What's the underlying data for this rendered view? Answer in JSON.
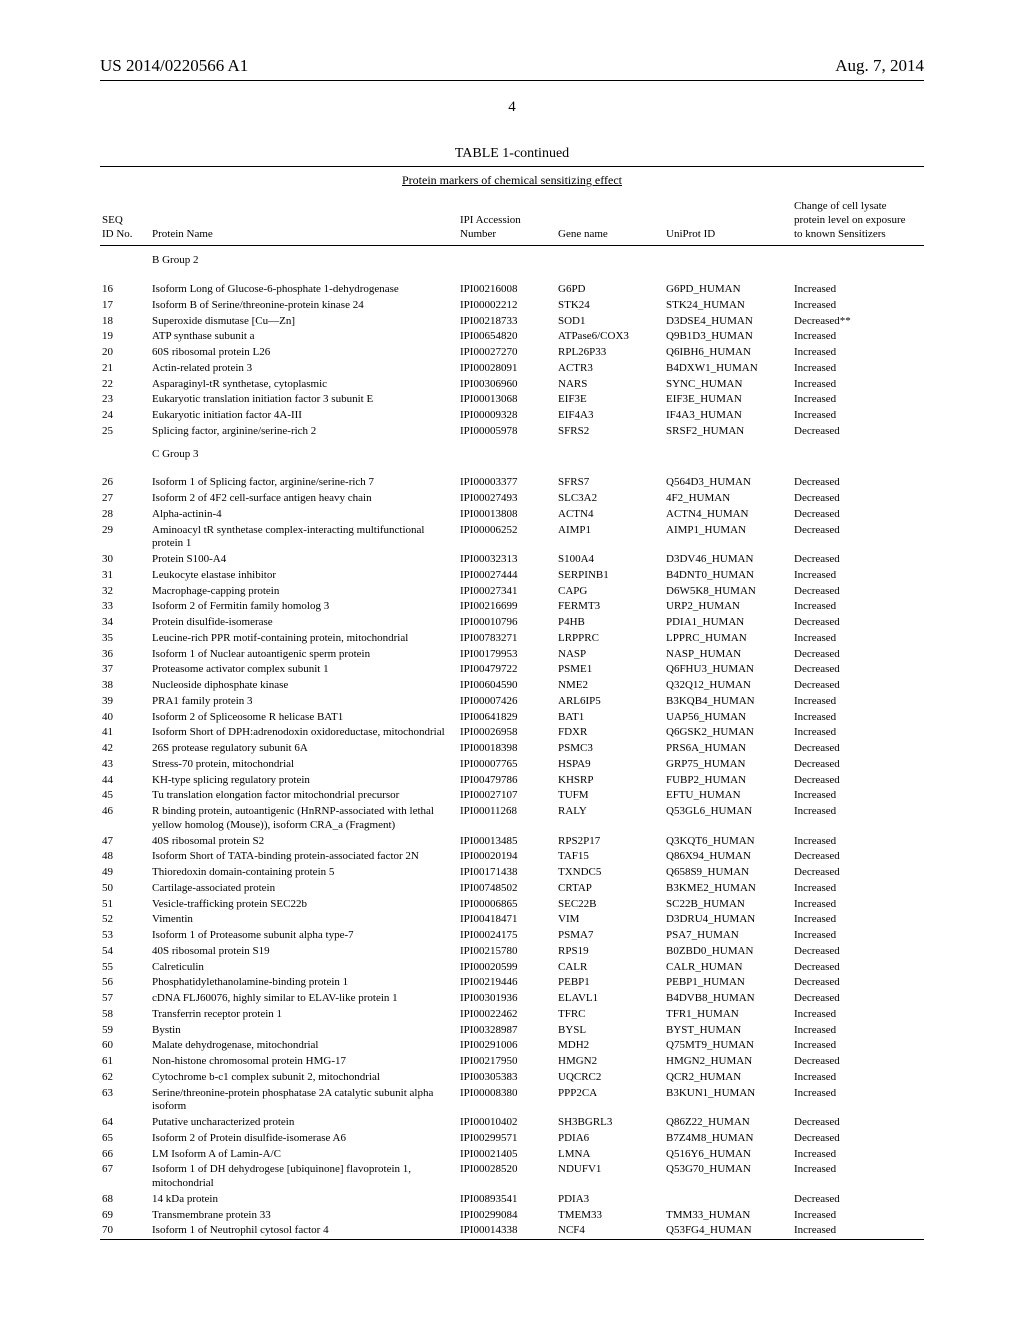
{
  "header": {
    "docnum": "US 2014/0220566 A1",
    "date": "Aug. 7, 2014",
    "pagenum": "4"
  },
  "table": {
    "caption": "TABLE 1-continued",
    "subcaption": "Protein markers of chemical sensitizing effect",
    "columns": {
      "seq": "SEQ\nID No.",
      "name": "Protein Name",
      "ipi": "IPI Accession\nNumber",
      "gene": "Gene name",
      "uni": "UniProt ID",
      "change": "Change of cell lysate\nprotein level on exposure\nto known Sensitizers"
    },
    "groups": [
      {
        "label": "B Group 2",
        "rows": [
          {
            "seq": "16",
            "name": "Isoform Long of Glucose-6-phosphate 1-dehydrogenase",
            "ipi": "IPI00216008",
            "gene": "G6PD",
            "uni": "G6PD_HUMAN",
            "change": "Increased"
          },
          {
            "seq": "17",
            "name": "Isoform B of Serine/threonine-protein kinase 24",
            "ipi": "IPI00002212",
            "gene": "STK24",
            "uni": "STK24_HUMAN",
            "change": "Increased"
          },
          {
            "seq": "18",
            "name": "Superoxide dismutase [Cu—Zn]",
            "ipi": "IPI00218733",
            "gene": "SOD1",
            "uni": "D3DSE4_HUMAN",
            "change": "Decreased**"
          },
          {
            "seq": "19",
            "name": "ATP synthase subunit a",
            "ipi": "IPI00654820",
            "gene": "ATPase6/COX3",
            "uni": "Q9B1D3_HUMAN",
            "change": "Increased"
          },
          {
            "seq": "20",
            "name": "60S ribosomal protein L26",
            "ipi": "IPI00027270",
            "gene": "RPL26P33",
            "uni": "Q6IBH6_HUMAN",
            "change": "Increased"
          },
          {
            "seq": "21",
            "name": "Actin-related protein 3",
            "ipi": "IPI00028091",
            "gene": "ACTR3",
            "uni": "B4DXW1_HUMAN",
            "change": "Increased"
          },
          {
            "seq": "22",
            "name": "Asparaginyl-tR synthetase, cytoplasmic",
            "ipi": "IPI00306960",
            "gene": "NARS",
            "uni": "SYNC_HUMAN",
            "change": "Increased"
          },
          {
            "seq": "23",
            "name": "Eukaryotic translation initiation factor 3 subunit E",
            "ipi": "IPI00013068",
            "gene": "EIF3E",
            "uni": "EIF3E_HUMAN",
            "change": "Increased"
          },
          {
            "seq": "24",
            "name": "Eukaryotic initiation factor 4A-III",
            "ipi": "IPI00009328",
            "gene": "EIF4A3",
            "uni": "IF4A3_HUMAN",
            "change": "Increased"
          },
          {
            "seq": "25",
            "name": "Splicing factor, arginine/serine-rich 2",
            "ipi": "IPI00005978",
            "gene": "SFRS2",
            "uni": "SRSF2_HUMAN",
            "change": "Decreased"
          }
        ]
      },
      {
        "label": "C Group 3",
        "rows": [
          {
            "seq": "26",
            "name": "Isoform 1 of Splicing factor, arginine/serine-rich 7",
            "ipi": "IPI00003377",
            "gene": "SFRS7",
            "uni": "Q564D3_HUMAN",
            "change": "Decreased"
          },
          {
            "seq": "27",
            "name": "Isoform 2 of 4F2 cell-surface antigen heavy chain",
            "ipi": "IPI00027493",
            "gene": "SLC3A2",
            "uni": "4F2_HUMAN",
            "change": "Decreased"
          },
          {
            "seq": "28",
            "name": "Alpha-actinin-4",
            "ipi": "IPI00013808",
            "gene": "ACTN4",
            "uni": "ACTN4_HUMAN",
            "change": "Decreased"
          },
          {
            "seq": "29",
            "name": "Aminoacyl tR synthetase complex-interacting multifunctional protein 1",
            "ipi": "IPI00006252",
            "gene": "AIMP1",
            "uni": "AIMP1_HUMAN",
            "change": "Decreased"
          },
          {
            "seq": "30",
            "name": "Protein S100-A4",
            "ipi": "IPI00032313",
            "gene": "S100A4",
            "uni": "D3DV46_HUMAN",
            "change": "Decreased"
          },
          {
            "seq": "31",
            "name": "Leukocyte elastase inhibitor",
            "ipi": "IPI00027444",
            "gene": "SERPINB1",
            "uni": "B4DNT0_HUMAN",
            "change": "Increased"
          },
          {
            "seq": "32",
            "name": "Macrophage-capping protein",
            "ipi": "IPI00027341",
            "gene": "CAPG",
            "uni": "D6W5K8_HUMAN",
            "change": "Decreased"
          },
          {
            "seq": "33",
            "name": "Isoform 2 of Fermitin family homolog 3",
            "ipi": "IPI00216699",
            "gene": "FERMT3",
            "uni": "URP2_HUMAN",
            "change": "Increased"
          },
          {
            "seq": "34",
            "name": "Protein disulfide-isomerase",
            "ipi": "IPI00010796",
            "gene": "P4HB",
            "uni": "PDIA1_HUMAN",
            "change": "Decreased"
          },
          {
            "seq": "35",
            "name": "Leucine-rich PPR motif-containing protein, mitochondrial",
            "ipi": "IPI00783271",
            "gene": "LRPPRC",
            "uni": "LPPRC_HUMAN",
            "change": "Increased"
          },
          {
            "seq": "36",
            "name": "Isoform 1 of Nuclear autoantigenic sperm protein",
            "ipi": "IPI00179953",
            "gene": "NASP",
            "uni": "NASP_HUMAN",
            "change": "Decreased"
          },
          {
            "seq": "37",
            "name": "Proteasome activator complex subunit 1",
            "ipi": "IPI00479722",
            "gene": "PSME1",
            "uni": "Q6FHU3_HUMAN",
            "change": "Decreased"
          },
          {
            "seq": "38",
            "name": "Nucleoside diphosphate kinase",
            "ipi": "IPI00604590",
            "gene": "NME2",
            "uni": "Q32Q12_HUMAN",
            "change": "Decreased"
          },
          {
            "seq": "39",
            "name": "PRA1 family protein 3",
            "ipi": "IPI00007426",
            "gene": "ARL6IP5",
            "uni": "B3KQB4_HUMAN",
            "change": "Increased"
          },
          {
            "seq": "40",
            "name": "Isoform 2 of Spliceosome R helicase BAT1",
            "ipi": "IPI00641829",
            "gene": "BAT1",
            "uni": "UAP56_HUMAN",
            "change": "Increased"
          },
          {
            "seq": "41",
            "name": "Isoform Short of DPH:adrenodoxin oxidoreductase, mitochondrial",
            "ipi": "IPI00026958",
            "gene": "FDXR",
            "uni": "Q6GSK2_HUMAN",
            "change": "Increased"
          },
          {
            "seq": "42",
            "name": "26S protease regulatory subunit 6A",
            "ipi": "IPI00018398",
            "gene": "PSMC3",
            "uni": "PRS6A_HUMAN",
            "change": "Decreased"
          },
          {
            "seq": "43",
            "name": "Stress-70 protein, mitochondrial",
            "ipi": "IPI00007765",
            "gene": "HSPA9",
            "uni": "GRP75_HUMAN",
            "change": "Decreased"
          },
          {
            "seq": "44",
            "name": "KH-type splicing regulatory protein",
            "ipi": "IPI00479786",
            "gene": "KHSRP",
            "uni": "FUBP2_HUMAN",
            "change": "Decreased"
          },
          {
            "seq": "45",
            "name": "Tu translation elongation factor mitochondrial precursor",
            "ipi": "IPI00027107",
            "gene": "TUFM",
            "uni": "EFTU_HUMAN",
            "change": "Increased"
          },
          {
            "seq": "46",
            "name": "R binding protein, autoantigenic (HnRNP-associated with lethal yellow homolog (Mouse)), isoform CRA_a (Fragment)",
            "ipi": "IPI00011268",
            "gene": "RALY",
            "uni": "Q53GL6_HUMAN",
            "change": "Increased"
          },
          {
            "seq": "47",
            "name": "40S ribosomal protein S2",
            "ipi": "IPI00013485",
            "gene": "RPS2P17",
            "uni": "Q3KQT6_HUMAN",
            "change": "Increased"
          },
          {
            "seq": "48",
            "name": "Isoform Short of TATA-binding protein-associated factor 2N",
            "ipi": "IPI00020194",
            "gene": "TAF15",
            "uni": "Q86X94_HUMAN",
            "change": "Decreased"
          },
          {
            "seq": "49",
            "name": "Thioredoxin domain-containing protein 5",
            "ipi": "IPI00171438",
            "gene": "TXNDC5",
            "uni": "Q658S9_HUMAN",
            "change": "Decreased"
          },
          {
            "seq": "50",
            "name": "Cartilage-associated protein",
            "ipi": "IPI00748502",
            "gene": "CRTAP",
            "uni": "B3KME2_HUMAN",
            "change": "Increased"
          },
          {
            "seq": "51",
            "name": "Vesicle-trafficking protein SEC22b",
            "ipi": "IPI00006865",
            "gene": "SEC22B",
            "uni": "SC22B_HUMAN",
            "change": "Increased"
          },
          {
            "seq": "52",
            "name": "Vimentin",
            "ipi": "IPI00418471",
            "gene": "VIM",
            "uni": "D3DRU4_HUMAN",
            "change": "Increased"
          },
          {
            "seq": "53",
            "name": "Isoform 1 of Proteasome subunit alpha type-7",
            "ipi": "IPI00024175",
            "gene": "PSMA7",
            "uni": "PSA7_HUMAN",
            "change": "Increased"
          },
          {
            "seq": "54",
            "name": "40S ribosomal protein S19",
            "ipi": "IPI00215780",
            "gene": "RPS19",
            "uni": "B0ZBD0_HUMAN",
            "change": "Decreased"
          },
          {
            "seq": "55",
            "name": "Calreticulin",
            "ipi": "IPI00020599",
            "gene": "CALR",
            "uni": "CALR_HUMAN",
            "change": "Decreased"
          },
          {
            "seq": "56",
            "name": "Phosphatidylethanolamine-binding protein 1",
            "ipi": "IPI00219446",
            "gene": "PEBP1",
            "uni": "PEBP1_HUMAN",
            "change": "Decreased"
          },
          {
            "seq": "57",
            "name": "cDNA FLJ60076, highly similar to ELAV-like protein 1",
            "ipi": "IPI00301936",
            "gene": "ELAVL1",
            "uni": "B4DVB8_HUMAN",
            "change": "Decreased"
          },
          {
            "seq": "58",
            "name": "Transferrin receptor protein 1",
            "ipi": "IPI00022462",
            "gene": "TFRC",
            "uni": "TFR1_HUMAN",
            "change": "Increased"
          },
          {
            "seq": "59",
            "name": "Bystin",
            "ipi": "IPI00328987",
            "gene": "BYSL",
            "uni": "BYST_HUMAN",
            "change": "Increased"
          },
          {
            "seq": "60",
            "name": "Malate dehydrogenase, mitochondrial",
            "ipi": "IPI00291006",
            "gene": "MDH2",
            "uni": "Q75MT9_HUMAN",
            "change": "Increased"
          },
          {
            "seq": "61",
            "name": "Non-histone chromosomal protein HMG-17",
            "ipi": "IPI00217950",
            "gene": "HMGN2",
            "uni": "HMGN2_HUMAN",
            "change": "Decreased"
          },
          {
            "seq": "62",
            "name": "Cytochrome b-c1 complex subunit 2, mitochondrial",
            "ipi": "IPI00305383",
            "gene": "UQCRC2",
            "uni": "QCR2_HUMAN",
            "change": "Increased"
          },
          {
            "seq": "63",
            "name": "Serine/threonine-protein phosphatase 2A catalytic subunit alpha isoform",
            "ipi": "IPI00008380",
            "gene": "PPP2CA",
            "uni": "B3KUN1_HUMAN",
            "change": "Increased"
          },
          {
            "seq": "64",
            "name": "Putative uncharacterized protein",
            "ipi": "IPI00010402",
            "gene": "SH3BGRL3",
            "uni": "Q86Z22_HUMAN",
            "change": "Decreased"
          },
          {
            "seq": "65",
            "name": "Isoform 2 of Protein disulfide-isomerase A6",
            "ipi": "IPI00299571",
            "gene": "PDIA6",
            "uni": "B7Z4M8_HUMAN",
            "change": "Decreased"
          },
          {
            "seq": "66",
            "name": "LM Isoform A of Lamin-A/C",
            "ipi": "IPI00021405",
            "gene": "LMNA",
            "uni": "Q516Y6_HUMAN",
            "change": "Increased"
          },
          {
            "seq": "67",
            "name": "Isoform 1 of DH dehydrogese [ubiquinone] flavoprotein 1, mitochondrial",
            "ipi": "IPI00028520",
            "gene": "NDUFV1",
            "uni": "Q53G70_HUMAN",
            "change": "Increased"
          },
          {
            "seq": "68",
            "name": "14 kDa protein",
            "ipi": "IPI00893541",
            "gene": "PDIA3",
            "uni": "",
            "change": "Decreased"
          },
          {
            "seq": "69",
            "name": "Transmembrane protein 33",
            "ipi": "IPI00299084",
            "gene": "TMEM33",
            "uni": "TMM33_HUMAN",
            "change": "Increased"
          },
          {
            "seq": "70",
            "name": "Isoform 1 of Neutrophil cytosol factor 4",
            "ipi": "IPI00014338",
            "gene": "NCF4",
            "uni": "Q53FG4_HUMAN",
            "change": "Increased"
          }
        ]
      }
    ]
  }
}
